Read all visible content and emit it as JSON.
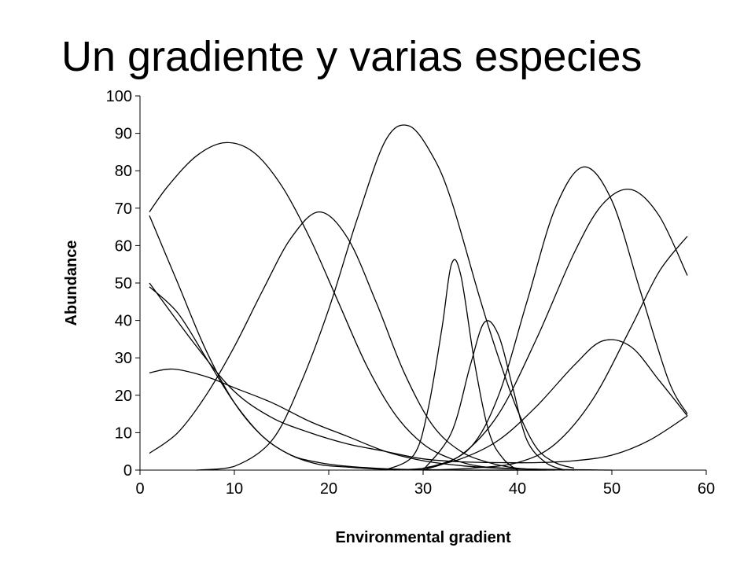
{
  "title": "Un gradiente y varias especies",
  "chart_data": {
    "type": "line",
    "title": "Un gradiente y varias especies",
    "xlabel": "Environmental gradient",
    "ylabel": "Abundance",
    "xlim": [
      0,
      60
    ],
    "ylim": [
      0,
      100
    ],
    "xticks": [
      0,
      10,
      20,
      30,
      40,
      50,
      60
    ],
    "yticks": [
      0,
      10,
      20,
      30,
      40,
      50,
      60,
      70,
      80,
      90,
      100
    ],
    "grid": false,
    "legend": "none",
    "series_color": "#000000",
    "series": [
      {
        "x": [
          1,
          3,
          6,
          9,
          12,
          15,
          18,
          21,
          24,
          27,
          30,
          33,
          36,
          39,
          42,
          45
        ],
        "y": [
          69,
          76,
          84,
          87.5,
          85,
          76,
          62,
          45,
          28,
          15,
          7,
          3,
          1,
          0.5,
          0.2,
          0
        ]
      },
      {
        "x": [
          1,
          4,
          7,
          10,
          13,
          16,
          19,
          22,
          25,
          28,
          31,
          34,
          37,
          40,
          43,
          46
        ],
        "y": [
          4.5,
          10,
          20,
          33,
          48,
          62,
          69,
          62,
          45,
          26,
          12,
          5,
          2,
          0.5,
          0.2,
          0
        ]
      },
      {
        "x": [
          6,
          10,
          14,
          17,
          20,
          23,
          26,
          28.5,
          31,
          33,
          36,
          38,
          40,
          42,
          44,
          46
        ],
        "y": [
          0,
          1,
          8,
          23,
          43,
          67,
          88,
          92,
          84,
          72,
          46,
          30,
          16,
          6,
          2,
          0.5
        ]
      },
      {
        "x": [
          1,
          4,
          7,
          10,
          13,
          16,
          19,
          22,
          25,
          28,
          31,
          34,
          37,
          40,
          44
        ],
        "y": [
          68,
          50,
          32,
          18,
          9,
          4,
          1.5,
          0.8,
          0.3,
          0.1,
          0,
          0,
          0,
          0,
          0
        ]
      },
      {
        "x": [
          1,
          4,
          7,
          10,
          13,
          16,
          19,
          22,
          25,
          28,
          31,
          34,
          37,
          40,
          43
        ],
        "y": [
          49,
          42,
          30,
          18,
          9,
          4,
          2,
          1,
          0.5,
          0.2,
          0.1,
          0,
          0,
          0,
          0
        ]
      },
      {
        "x": [
          1,
          3.5,
          7,
          10,
          14,
          18,
          22,
          26,
          30,
          34,
          38,
          42,
          46,
          50
        ],
        "y": [
          26,
          27,
          25,
          22,
          18,
          13,
          9,
          5,
          2.5,
          1.2,
          0.5,
          0.2,
          0.1,
          0
        ]
      },
      {
        "x": [
          1,
          6,
          10,
          14,
          18,
          22,
          26,
          30,
          34,
          38,
          42,
          46,
          50,
          54,
          58
        ],
        "y": [
          50,
          33,
          21,
          14,
          10,
          7,
          5,
          3,
          2.2,
          2,
          2,
          2.5,
          4,
          8,
          14.5
        ]
      },
      {
        "x": [
          26,
          29,
          30.5,
          32,
          33,
          34,
          35.5,
          37,
          38.5,
          40
        ],
        "y": [
          0,
          4,
          16,
          38,
          55,
          52,
          28,
          10,
          3,
          0
        ]
      },
      {
        "x": [
          30,
          33,
          35,
          36.5,
          38,
          39.5,
          41,
          43,
          45
        ],
        "y": [
          0,
          10,
          28,
          39.5,
          36,
          22,
          8,
          2,
          0
        ]
      },
      {
        "x": [
          27,
          31,
          35,
          38,
          41,
          44,
          47,
          50,
          53,
          56,
          58
        ],
        "y": [
          0,
          1,
          6,
          20,
          45,
          70,
          81,
          72,
          48,
          24,
          15
        ]
      },
      {
        "x": [
          30,
          34,
          38,
          42,
          46,
          49,
          52,
          55,
          58
        ],
        "y": [
          0,
          4,
          15,
          35,
          58,
          71,
          75,
          68,
          52
        ]
      },
      {
        "x": [
          30,
          34,
          38,
          42,
          46,
          49,
          52,
          55,
          58
        ],
        "y": [
          0.5,
          3,
          8,
          17,
          28,
          34.5,
          33,
          24,
          14.5
        ]
      },
      {
        "x": [
          30,
          35,
          40,
          44,
          48,
          52,
          55,
          58
        ],
        "y": [
          0,
          0.5,
          2,
          7,
          19,
          38,
          53,
          62.5
        ]
      }
    ]
  }
}
